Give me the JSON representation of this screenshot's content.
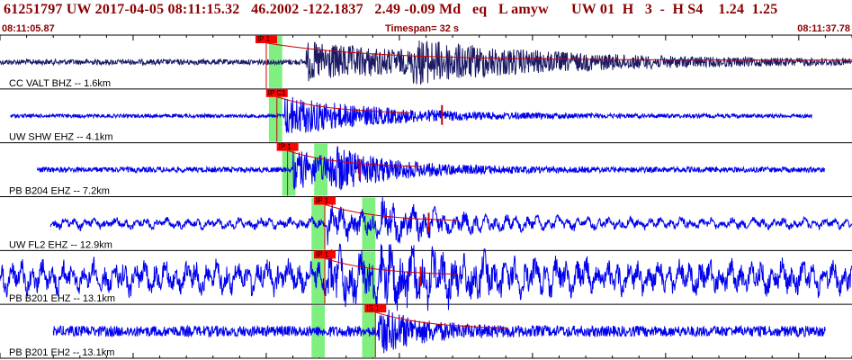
{
  "header": {
    "title": "61251797 UW 2017-04-05 08:11:15.32   46.2002 -122.1837   2.49 -0.09 Md   eq   L amyw      UW 01  H   3  -  H S4    1.24  1.25",
    "time_start": "08:11:05.87",
    "timespan": "Timespan=  32 s",
    "time_end": "08:11:37.78"
  },
  "colors": {
    "title": "#8b0000",
    "trace_first": "#1a1a66",
    "trace": "#0000ee",
    "coda": "#cc0000",
    "pick_box": "#ff0000",
    "window": "#7ff07f"
  },
  "chart_data": {
    "type": "line",
    "title": "61251797 UW 2017-04-05 08:11:15.32",
    "xlabel": "",
    "ylabel": "",
    "x_range_s": [
      0,
      32
    ],
    "grid": false,
    "channels": [
      {
        "label": "CC VALT BHZ -- 1.6km",
        "pick": "IP 1",
        "pick_time_s": 10.0,
        "green_windows_s": [
          [
            10.1,
            10.6
          ]
        ],
        "coda_marker_s": null,
        "trace_span_s": [
          0,
          32
        ],
        "noise": 3,
        "event_amp": 20,
        "event_s": 11.5,
        "decay": 6,
        "event2_s": 15.5,
        "event2_amp": 14,
        "low_freq": false
      },
      {
        "label": "UW SHW EHZ -- 4.1km",
        "pick": "IP C1",
        "pick_time_s": 10.4,
        "green_windows_s": [
          [
            10.1,
            10.6
          ]
        ],
        "coda_marker_s": 16.6,
        "trace_span_s": [
          0.4,
          30.5
        ],
        "noise": 2,
        "event_amp": 22,
        "event_s": 10.7,
        "decay": 3.5,
        "event2_s": null,
        "event2_amp": 0,
        "low_freq": false
      },
      {
        "label": "PB B204 EHZ -- 7.2km",
        "pick": "IP 1",
        "pick_time_s": 10.8,
        "green_windows_s": [
          [
            10.6,
            11.1
          ],
          [
            11.8,
            12.3
          ]
        ],
        "coda_marker_s": 13.5,
        "trace_span_s": [
          1.4,
          31.0
        ],
        "noise": 3,
        "event_amp": 20,
        "event_s": 11.0,
        "decay": 2.5,
        "event2_s": 12.4,
        "event2_amp": 15,
        "low_freq": false
      },
      {
        "label": "UW FL2 EHZ -- 12.9km",
        "pick": "IP 1",
        "pick_time_s": 12.2,
        "green_windows_s": [
          [
            11.7,
            12.2
          ],
          [
            13.6,
            14.1
          ]
        ],
        "coda_marker_s": 16.1,
        "trace_span_s": [
          1.9,
          32
        ],
        "noise": 8,
        "event_amp": 20,
        "event_s": 12.3,
        "decay": 3,
        "event2_s": 14.3,
        "event2_amp": 18,
        "low_freq": true
      },
      {
        "label": "PB B201 EHZ -- 13.1km",
        "pick": "IP 1",
        "pick_time_s": 12.2,
        "green_windows_s": [
          [
            11.7,
            12.2
          ],
          [
            13.6,
            14.1
          ]
        ],
        "coda_marker_s": 15.8,
        "trace_span_s": [
          0,
          32
        ],
        "noise": 24,
        "event_amp": 28,
        "event_s": 12.3,
        "decay": 3,
        "event2_s": 14.3,
        "event2_amp": 24,
        "low_freq": true
      },
      {
        "label": "PB B201 EH2 -- 13.1km",
        "pick": "IS 1",
        "pick_time_s": 14.1,
        "green_windows_s": [
          [
            11.7,
            12.2
          ],
          [
            13.6,
            14.1
          ]
        ],
        "coda_marker_s": null,
        "trace_span_s": [
          2.0,
          31.0
        ],
        "noise": 6,
        "event_amp": 24,
        "event_s": 14.2,
        "decay": 1.5,
        "event2_s": null,
        "event2_amp": 0,
        "low_freq": false
      }
    ]
  }
}
